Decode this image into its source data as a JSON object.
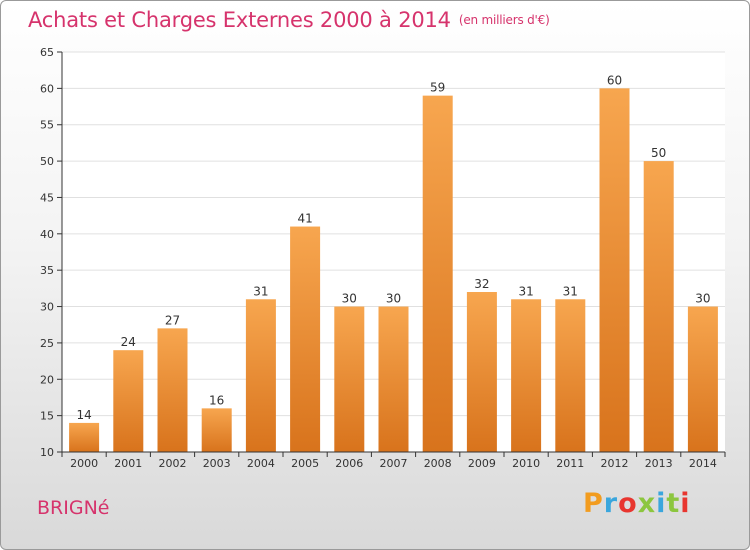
{
  "header": {
    "title": "Achats et Charges Externes 2000 à 2014",
    "unit": "(en milliers d'€)"
  },
  "footer": {
    "city": "BRIGNé",
    "logo_letters": [
      "P",
      "r",
      "o",
      "x",
      "i",
      "t",
      "i"
    ],
    "logo_colors": [
      "#f29c1f",
      "#3aa6dd",
      "#e8352f",
      "#8cc63f",
      "#3aa6dd",
      "#8cc63f",
      "#e8352f"
    ]
  },
  "colors": {
    "title": "#d6336c",
    "bar_top": "#f7a64f",
    "bar_bottom": "#d8731c",
    "grid": "#e0e0e0",
    "axis": "#333333"
  },
  "chart_data": {
    "type": "bar",
    "title": "Achats et Charges Externes 2000 à 2014",
    "subtitle": "(en milliers d'€)",
    "categories": [
      "2000",
      "2001",
      "2002",
      "2003",
      "2004",
      "2005",
      "2006",
      "2007",
      "2008",
      "2009",
      "2010",
      "2011",
      "2012",
      "2013",
      "2014"
    ],
    "values": [
      14,
      24,
      27,
      16,
      31,
      41,
      30,
      30,
      59,
      32,
      31,
      31,
      60,
      50,
      30
    ],
    "ylim": [
      10,
      65
    ],
    "yticks": [
      10,
      15,
      20,
      25,
      30,
      35,
      40,
      45,
      50,
      55,
      60,
      65
    ],
    "grid": true,
    "data_labels": true
  }
}
